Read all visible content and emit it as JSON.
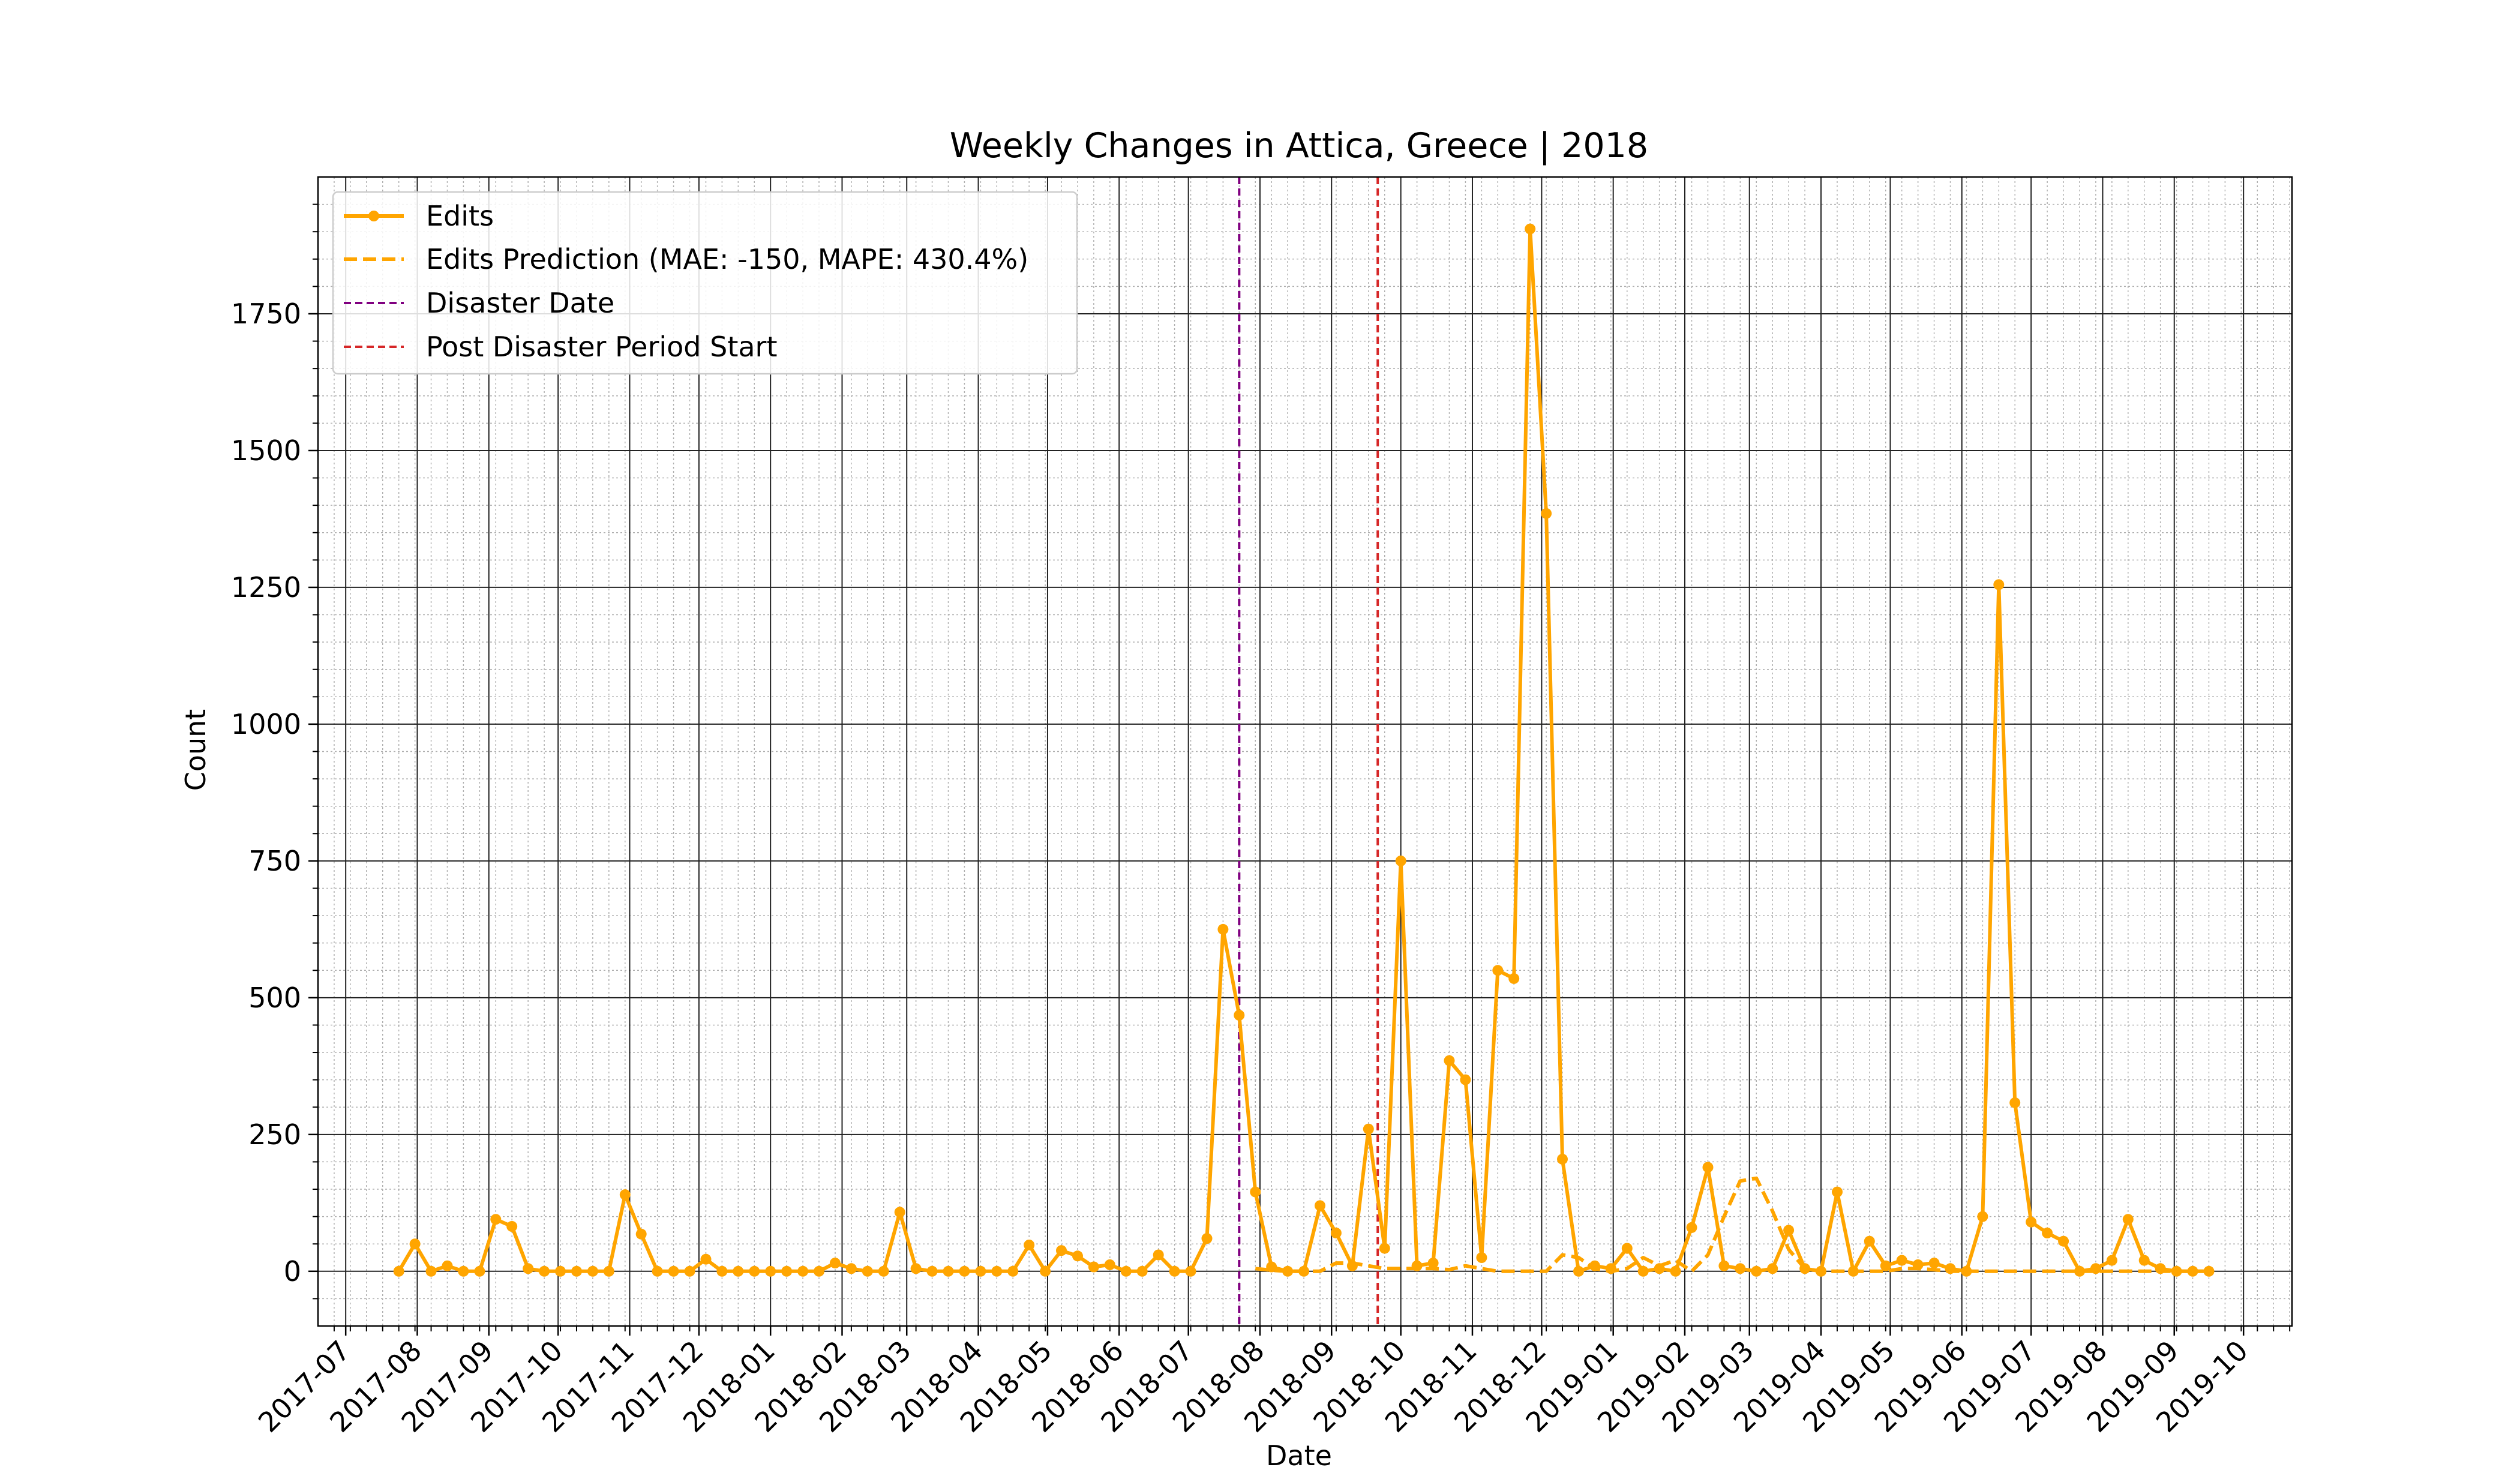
{
  "chart_data": {
    "type": "line",
    "title": "Weekly Changes in Attica, Greece | 2018",
    "xlabel": "Date",
    "ylabel": "Count",
    "x_range": [
      "2017-06-19",
      "2019-10-22"
    ],
    "ylim": [
      -100,
      2000
    ],
    "y_ticks": [
      0,
      250,
      500,
      750,
      1000,
      1250,
      1500,
      1750
    ],
    "x_ticks": [
      "2017-07",
      "2017-08",
      "2017-09",
      "2017-10",
      "2017-11",
      "2017-12",
      "2018-01",
      "2018-02",
      "2018-03",
      "2018-04",
      "2018-05",
      "2018-06",
      "2018-07",
      "2018-08",
      "2018-09",
      "2018-10",
      "2018-11",
      "2018-12",
      "2019-01",
      "2019-02",
      "2019-03",
      "2019-04",
      "2019-05",
      "2019-06",
      "2019-07",
      "2019-08",
      "2019-09",
      "2019-10"
    ],
    "grid": true,
    "legend_position": "upper-left",
    "colors": {
      "edits": "#FFA500",
      "prediction": "#FFA500",
      "disaster": "#800080",
      "post_disaster": "#D62728"
    },
    "series": [
      {
        "name": "Edits",
        "style": "solid-with-markers",
        "points": [
          [
            "2017-07-24",
            0
          ],
          [
            "2017-07-31",
            50
          ],
          [
            "2017-08-07",
            0
          ],
          [
            "2017-08-14",
            10
          ],
          [
            "2017-08-21",
            0
          ],
          [
            "2017-08-28",
            0
          ],
          [
            "2017-09-04",
            95
          ],
          [
            "2017-09-11",
            82
          ],
          [
            "2017-09-18",
            5
          ],
          [
            "2017-09-25",
            0
          ],
          [
            "2017-10-02",
            0
          ],
          [
            "2017-10-09",
            0
          ],
          [
            "2017-10-16",
            0
          ],
          [
            "2017-10-23",
            0
          ],
          [
            "2017-10-30",
            140
          ],
          [
            "2017-11-06",
            68
          ],
          [
            "2017-11-13",
            0
          ],
          [
            "2017-11-20",
            0
          ],
          [
            "2017-11-27",
            0
          ],
          [
            "2017-12-04",
            22
          ],
          [
            "2017-12-11",
            0
          ],
          [
            "2017-12-18",
            0
          ],
          [
            "2017-12-25",
            0
          ],
          [
            "2018-01-01",
            0
          ],
          [
            "2018-01-08",
            0
          ],
          [
            "2018-01-15",
            0
          ],
          [
            "2018-01-22",
            0
          ],
          [
            "2018-01-29",
            15
          ],
          [
            "2018-02-05",
            5
          ],
          [
            "2018-02-12",
            0
          ],
          [
            "2018-02-19",
            0
          ],
          [
            "2018-02-26",
            108
          ],
          [
            "2018-03-05",
            5
          ],
          [
            "2018-03-12",
            0
          ],
          [
            "2018-03-19",
            0
          ],
          [
            "2018-03-26",
            0
          ],
          [
            "2018-04-02",
            0
          ],
          [
            "2018-04-09",
            0
          ],
          [
            "2018-04-16",
            0
          ],
          [
            "2018-04-23",
            48
          ],
          [
            "2018-04-30",
            0
          ],
          [
            "2018-05-07",
            38
          ],
          [
            "2018-05-14",
            28
          ],
          [
            "2018-05-21",
            8
          ],
          [
            "2018-05-28",
            12
          ],
          [
            "2018-06-04",
            0
          ],
          [
            "2018-06-11",
            0
          ],
          [
            "2018-06-18",
            30
          ],
          [
            "2018-06-25",
            0
          ],
          [
            "2018-07-02",
            0
          ],
          [
            "2018-07-09",
            60
          ],
          [
            "2018-07-16",
            625
          ],
          [
            "2018-07-23",
            468
          ],
          [
            "2018-07-30",
            145
          ],
          [
            "2018-08-06",
            8
          ],
          [
            "2018-08-13",
            0
          ],
          [
            "2018-08-20",
            0
          ],
          [
            "2018-08-27",
            120
          ],
          [
            "2018-09-03",
            70
          ],
          [
            "2018-09-10",
            10
          ],
          [
            "2018-09-17",
            260
          ],
          [
            "2018-09-24",
            42
          ],
          [
            "2018-10-01",
            750
          ],
          [
            "2018-10-08",
            10
          ],
          [
            "2018-10-15",
            15
          ],
          [
            "2018-10-22",
            385
          ],
          [
            "2018-10-29",
            350
          ],
          [
            "2018-11-05",
            25
          ],
          [
            "2018-11-12",
            550
          ],
          [
            "2018-11-19",
            535
          ],
          [
            "2018-11-26",
            1905
          ],
          [
            "2018-12-03",
            1385
          ],
          [
            "2018-12-10",
            205
          ],
          [
            "2018-12-17",
            0
          ],
          [
            "2018-12-24",
            10
          ],
          [
            "2018-12-31",
            5
          ],
          [
            "2019-01-07",
            42
          ],
          [
            "2019-01-14",
            0
          ],
          [
            "2019-01-21",
            5
          ],
          [
            "2019-01-28",
            0
          ],
          [
            "2019-02-04",
            80
          ],
          [
            "2019-02-11",
            190
          ],
          [
            "2019-02-18",
            10
          ],
          [
            "2019-02-25",
            5
          ],
          [
            "2019-03-04",
            0
          ],
          [
            "2019-03-11",
            5
          ],
          [
            "2019-03-18",
            75
          ],
          [
            "2019-03-25",
            5
          ],
          [
            "2019-04-01",
            0
          ],
          [
            "2019-04-08",
            145
          ],
          [
            "2019-04-15",
            0
          ],
          [
            "2019-04-22",
            55
          ],
          [
            "2019-04-29",
            10
          ],
          [
            "2019-05-06",
            20
          ],
          [
            "2019-05-13",
            12
          ],
          [
            "2019-05-20",
            15
          ],
          [
            "2019-05-27",
            5
          ],
          [
            "2019-06-03",
            0
          ],
          [
            "2019-06-10",
            100
          ],
          [
            "2019-06-17",
            1255
          ],
          [
            "2019-06-24",
            308
          ],
          [
            "2019-07-01",
            90
          ],
          [
            "2019-07-08",
            70
          ],
          [
            "2019-07-15",
            55
          ],
          [
            "2019-07-22",
            0
          ],
          [
            "2019-07-29",
            5
          ],
          [
            "2019-08-05",
            20
          ],
          [
            "2019-08-12",
            95
          ],
          [
            "2019-08-19",
            20
          ],
          [
            "2019-08-26",
            5
          ],
          [
            "2019-09-02",
            0
          ],
          [
            "2019-09-09",
            0
          ],
          [
            "2019-09-16",
            0
          ]
        ]
      },
      {
        "name": "Edits Prediction (MAE: -150, MAPE: 430.4%)",
        "style": "dashed",
        "points": [
          [
            "2018-07-30",
            5
          ],
          [
            "2018-08-06",
            2
          ],
          [
            "2018-08-13",
            0
          ],
          [
            "2018-08-20",
            0
          ],
          [
            "2018-08-27",
            0
          ],
          [
            "2018-09-03",
            15
          ],
          [
            "2018-09-10",
            15
          ],
          [
            "2018-09-17",
            10
          ],
          [
            "2018-09-24",
            5
          ],
          [
            "2018-10-01",
            5
          ],
          [
            "2018-10-08",
            5
          ],
          [
            "2018-10-15",
            5
          ],
          [
            "2018-10-22",
            3
          ],
          [
            "2018-10-29",
            10
          ],
          [
            "2018-11-05",
            5
          ],
          [
            "2018-11-12",
            0
          ],
          [
            "2018-11-19",
            0
          ],
          [
            "2018-11-26",
            0
          ],
          [
            "2018-12-03",
            0
          ],
          [
            "2018-12-10",
            30
          ],
          [
            "2018-12-17",
            25
          ],
          [
            "2018-12-24",
            5
          ],
          [
            "2018-12-31",
            0
          ],
          [
            "2019-01-07",
            5
          ],
          [
            "2019-01-14",
            25
          ],
          [
            "2019-01-21",
            10
          ],
          [
            "2019-01-28",
            20
          ],
          [
            "2019-02-04",
            0
          ],
          [
            "2019-02-11",
            30
          ],
          [
            "2019-02-18",
            100
          ],
          [
            "2019-02-25",
            165
          ],
          [
            "2019-03-04",
            170
          ],
          [
            "2019-03-11",
            110
          ],
          [
            "2019-03-18",
            40
          ],
          [
            "2019-03-25",
            5
          ],
          [
            "2019-04-01",
            0
          ],
          [
            "2019-04-08",
            0
          ],
          [
            "2019-04-15",
            0
          ],
          [
            "2019-04-22",
            0
          ],
          [
            "2019-04-29",
            0
          ],
          [
            "2019-05-06",
            5
          ],
          [
            "2019-05-13",
            5
          ],
          [
            "2019-05-20",
            3
          ],
          [
            "2019-05-27",
            0
          ],
          [
            "2019-06-03",
            0
          ],
          [
            "2019-06-10",
            0
          ],
          [
            "2019-06-17",
            0
          ],
          [
            "2019-06-24",
            0
          ],
          [
            "2019-07-01",
            0
          ],
          [
            "2019-07-08",
            0
          ],
          [
            "2019-07-15",
            0
          ],
          [
            "2019-07-22",
            0
          ],
          [
            "2019-07-29",
            0
          ],
          [
            "2019-08-05",
            0
          ],
          [
            "2019-08-12",
            0
          ],
          [
            "2019-08-19",
            0
          ],
          [
            "2019-08-26",
            0
          ],
          [
            "2019-09-02",
            0
          ],
          [
            "2019-09-09",
            0
          ],
          [
            "2019-09-16",
            0
          ]
        ]
      }
    ],
    "vlines": [
      {
        "name": "Disaster Date",
        "date": "2018-07-23",
        "color_key": "disaster"
      },
      {
        "name": "Post Disaster Period Start",
        "date": "2018-09-21",
        "color_key": "post_disaster"
      }
    ]
  }
}
